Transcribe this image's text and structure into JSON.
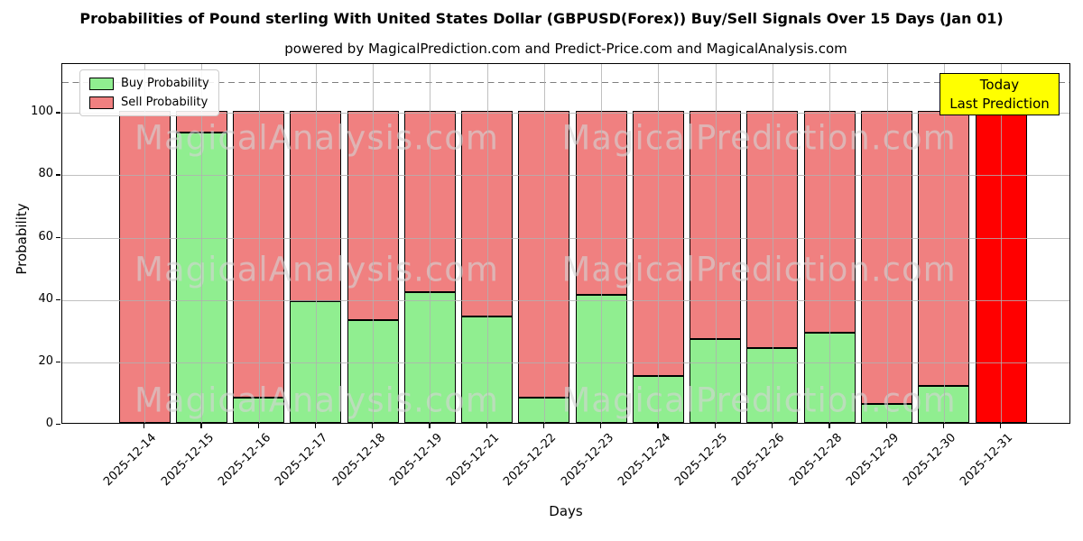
{
  "figure": {
    "title": "Probabilities of Pound sterling With United States Dollar (GBPUSD(Forex)) Buy/Sell Signals Over 15 Days (Jan 01)",
    "subtitle": "powered by MagicalPrediction.com and Predict-Price.com and MagicalAnalysis.com"
  },
  "legend": {
    "items": [
      {
        "label": "Buy Probability",
        "color": "#90ee90"
      },
      {
        "label": "Sell Probability",
        "color": "#f08080"
      }
    ]
  },
  "annotation": {
    "line1": "Today",
    "line2": "Last Prediction",
    "bg_color": "#ffff00",
    "border_color": "#000000"
  },
  "watermark": {
    "left": "MagicalAnalysis.com",
    "right": "MagicalPrediction.com"
  },
  "axes": {
    "xlabel": "Days",
    "ylabel": "Probability",
    "yticks": [
      0,
      20,
      40,
      60,
      80,
      100
    ],
    "ylim": [
      0,
      115.7
    ],
    "dashed_line_y": 110,
    "grid": true,
    "grid_color": "#b0b0b0"
  },
  "chart_data": {
    "type": "bar",
    "stacked": true,
    "title": "Probabilities of Pound sterling With United States Dollar (GBPUSD(Forex)) Buy/Sell Signals Over 15 Days (Jan 01)",
    "xlabel": "Days",
    "ylabel": "Probability",
    "ylim": [
      0,
      115.7
    ],
    "legend_position": "upper left",
    "categories": [
      "2025-12-14",
      "2025-12-15",
      "2025-12-16",
      "2025-12-17",
      "2025-12-18",
      "2025-12-19",
      "2025-12-21",
      "2025-12-22",
      "2025-12-23",
      "2025-12-24",
      "2025-12-25",
      "2025-12-26",
      "2025-12-28",
      "2025-12-29",
      "2025-12-30",
      "2025-12-31"
    ],
    "series": [
      {
        "name": "Buy Probability",
        "color": "#90ee90",
        "values": [
          0,
          93,
          8,
          39,
          33,
          42,
          34,
          8,
          41,
          15,
          27,
          24,
          29,
          6,
          12,
          0
        ]
      },
      {
        "name": "Sell Probability",
        "color": "#f08080",
        "values": [
          100,
          7,
          92,
          61,
          67,
          58,
          66,
          92,
          59,
          85,
          73,
          76,
          71,
          94,
          88,
          100
        ]
      }
    ],
    "today_bar": {
      "category": "2025-12-31",
      "color": "#ff0000"
    }
  }
}
